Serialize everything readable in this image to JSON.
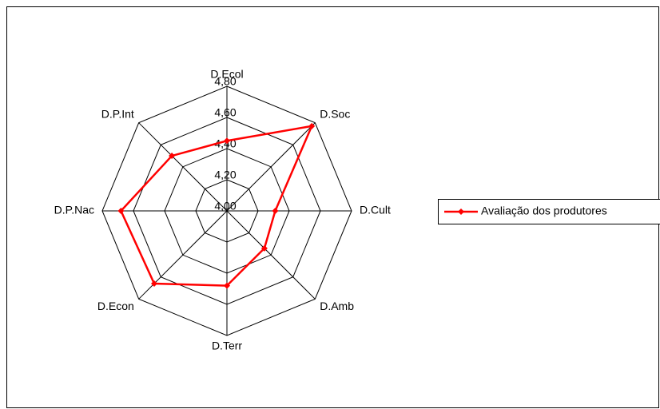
{
  "chart_data": {
    "type": "radar",
    "categories": [
      "D.Ecol",
      "D.Soc",
      "D.Cult",
      "D.Amb",
      "D.Terr",
      "D.Econ",
      "D.P.Nac",
      "D.P.Int"
    ],
    "series": [
      {
        "name": "Avaliação dos produtores",
        "color": "#ff0000",
        "values": [
          4.45,
          4.77,
          4.31,
          4.34,
          4.48,
          4.66,
          4.68,
          4.5
        ]
      }
    ],
    "rlim": [
      4.0,
      4.8
    ],
    "rticks": [
      {
        "value": 4.0,
        "label": "4,00"
      },
      {
        "value": 4.2,
        "label": "4,20"
      },
      {
        "value": 4.4,
        "label": "4,40"
      },
      {
        "value": 4.6,
        "label": "4,60"
      },
      {
        "value": 4.8,
        "label": "4,80"
      }
    ],
    "legend": "right"
  }
}
